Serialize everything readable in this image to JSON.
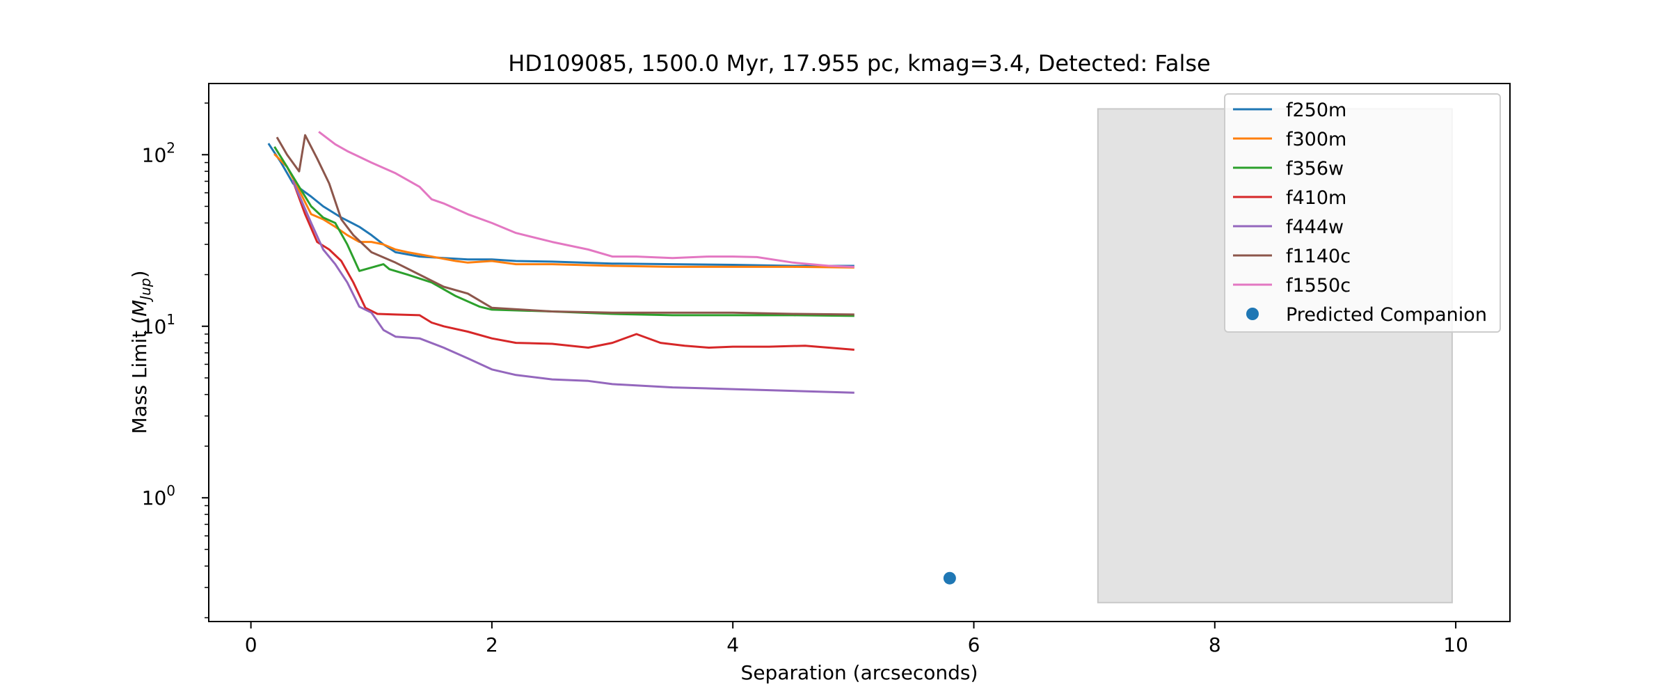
{
  "chart_data": {
    "type": "line",
    "title": "HD109085, 1500.0 Myr, 17.955 pc, kmag=3.4, Detected: False",
    "xlabel": "Separation (arcseconds)",
    "ylabel_main": "Mass Limit (",
    "ylabel_symbol": "M",
    "ylabel_sub": "Jup",
    "ylabel_close": ")",
    "yscale": "log",
    "xlim": [
      -0.35,
      10.45
    ],
    "ylim": [
      0.19,
      260
    ],
    "x_ticks": [
      {
        "value": 0,
        "label": "0"
      },
      {
        "value": 2,
        "label": "2"
      },
      {
        "value": 4,
        "label": "4"
      },
      {
        "value": 6,
        "label": "6"
      },
      {
        "value": 8,
        "label": "8"
      },
      {
        "value": 10,
        "label": "10"
      }
    ],
    "y_ticks": [
      {
        "value": 1,
        "base": "10",
        "exp": "0"
      },
      {
        "value": 10,
        "base": "10",
        "exp": "1"
      },
      {
        "value": 100,
        "base": "10",
        "exp": "2"
      }
    ],
    "grid": false,
    "legend_position": "upper right",
    "series": [
      {
        "name": "f250m",
        "color": "#1f77b4",
        "x": [
          0.15,
          0.25,
          0.35,
          0.5,
          0.6,
          0.75,
          0.9,
          1.0,
          1.1,
          1.2,
          1.4,
          1.6,
          1.8,
          2.0,
          2.2,
          2.5,
          3.0,
          3.5,
          4.0,
          4.5,
          5.0
        ],
        "y": [
          115,
          90,
          68,
          57,
          50,
          43,
          38,
          34,
          30,
          27,
          25.5,
          25,
          24.5,
          24.5,
          24,
          23.8,
          23.2,
          23,
          22.8,
          22.5,
          22.5
        ]
      },
      {
        "name": "f300m",
        "color": "#ff7f0e",
        "x": [
          0.2,
          0.3,
          0.4,
          0.5,
          0.6,
          0.7,
          0.8,
          0.9,
          1.0,
          1.1,
          1.2,
          1.3,
          1.5,
          1.7,
          1.8,
          2.0,
          2.2,
          2.5,
          3.0,
          3.5,
          4.0,
          4.5,
          5.0
        ],
        "y": [
          100,
          85,
          62,
          45,
          42,
          38,
          34,
          31,
          31,
          30,
          28,
          27,
          25.5,
          24,
          23.5,
          24,
          23,
          23,
          22.5,
          22.2,
          22.2,
          22.2,
          22
        ]
      },
      {
        "name": "f356w",
        "color": "#2ca02c",
        "x": [
          0.2,
          0.3,
          0.4,
          0.5,
          0.6,
          0.7,
          0.8,
          0.9,
          1.0,
          1.1,
          1.15,
          1.3,
          1.5,
          1.7,
          1.9,
          2.0,
          2.5,
          3.0,
          3.5,
          4.0,
          4.5,
          5.0
        ],
        "y": [
          110,
          85,
          65,
          50,
          43,
          40,
          30,
          21,
          22,
          23,
          21.5,
          20,
          18,
          15,
          13,
          12.5,
          12.2,
          11.8,
          11.6,
          11.6,
          11.6,
          11.5
        ]
      },
      {
        "name": "f410m",
        "color": "#d62728",
        "x": [
          0.35,
          0.45,
          0.55,
          0.65,
          0.75,
          0.85,
          0.95,
          1.05,
          1.2,
          1.4,
          1.5,
          1.6,
          1.8,
          2.0,
          2.2,
          2.5,
          2.8,
          3.0,
          3.2,
          3.4,
          3.6,
          3.8,
          4.0,
          4.3,
          4.6,
          5.0
        ],
        "y": [
          70,
          45,
          31,
          28,
          24,
          18,
          12.8,
          11.8,
          11.7,
          11.6,
          10.5,
          10.0,
          9.3,
          8.5,
          8.0,
          7.9,
          7.5,
          8.0,
          9.0,
          8.0,
          7.7,
          7.5,
          7.6,
          7.6,
          7.7,
          7.3
        ]
      },
      {
        "name": "f444w",
        "color": "#9467bd",
        "x": [
          0.35,
          0.5,
          0.6,
          0.7,
          0.8,
          0.9,
          1.0,
          1.1,
          1.2,
          1.4,
          1.6,
          1.8,
          2.0,
          2.2,
          2.5,
          2.8,
          3.0,
          3.5,
          4.0,
          4.5,
          5.0
        ],
        "y": [
          70,
          40,
          28,
          23,
          18,
          13,
          12,
          9.5,
          8.7,
          8.5,
          7.5,
          6.5,
          5.6,
          5.2,
          4.9,
          4.8,
          4.6,
          4.4,
          4.3,
          4.2,
          4.1
        ]
      },
      {
        "name": "f1140c",
        "color": "#8c564b",
        "x": [
          0.22,
          0.3,
          0.4,
          0.45,
          0.55,
          0.65,
          0.75,
          0.85,
          1.0,
          1.2,
          1.4,
          1.6,
          1.8,
          2.0,
          2.5,
          3.0,
          3.5,
          4.0,
          4.5,
          5.0
        ],
        "y": [
          125,
          100,
          80,
          130,
          95,
          68,
          42,
          34,
          27,
          23.5,
          20,
          17,
          15.5,
          12.8,
          12.2,
          12.0,
          12.0,
          12.0,
          11.8,
          11.7
        ]
      },
      {
        "name": "f1550c",
        "color": "#e377c2",
        "x": [
          0.57,
          0.7,
          0.8,
          1.0,
          1.2,
          1.4,
          1.5,
          1.6,
          1.8,
          2.0,
          2.2,
          2.5,
          2.8,
          3.0,
          3.2,
          3.5,
          3.8,
          4.0,
          4.2,
          4.5,
          4.8,
          5.0
        ],
        "y": [
          135,
          115,
          105,
          90,
          78,
          65,
          55,
          52,
          45,
          40,
          35,
          31,
          28,
          25.5,
          25.5,
          25,
          25.5,
          25.5,
          25.3,
          23.5,
          22.5,
          22.2
        ]
      }
    ],
    "scatter_series": [
      {
        "name": "Predicted Companion",
        "color": "#1f77b4",
        "x": [
          5.8
        ],
        "y": [
          0.34
        ]
      }
    ],
    "shaded_region": {
      "x": [
        7.03,
        9.97
      ],
      "y": [
        0.245,
        185
      ],
      "color": "#e3e3e3",
      "edge_color": "#c8c8c8"
    }
  }
}
